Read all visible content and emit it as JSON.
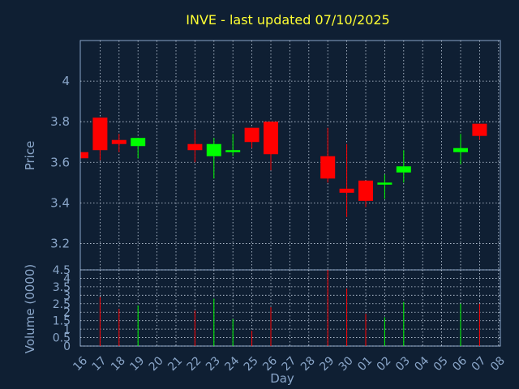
{
  "chart_data": {
    "type": "candlestick",
    "title": "INVE - last updated 07/10/2025",
    "ylabel": "Price",
    "volume_ylabel": "Volume (0000)",
    "xlabel": "Day",
    "ylim": [
      3.07,
      4.2
    ],
    "volume_ylim": [
      0,
      4.5
    ],
    "yticks": [
      "3.2",
      "3.4",
      "3.6",
      "3.8",
      "4"
    ],
    "volume_yticks": [
      "0",
      "0.5",
      "1",
      "1.5",
      "2",
      "2.5",
      "3",
      "3.5",
      "4",
      "4.5"
    ],
    "grid": true,
    "up_color": "#00ff00",
    "down_color": "#ff0000",
    "x_tick_labels": [
      "16",
      "17",
      "18",
      "19",
      "20",
      "21",
      "22",
      "23",
      "24",
      "25",
      "26",
      "27",
      "28",
      "29",
      "30",
      "01",
      "02",
      "03",
      "04",
      "05",
      "06",
      "07",
      "08"
    ],
    "candles": [
      {
        "day": "16",
        "open": 3.65,
        "high": 3.65,
        "low": 3.62,
        "close": 3.62,
        "volume": 0
      },
      {
        "day": "17",
        "open": 3.82,
        "high": 3.82,
        "low": 3.61,
        "close": 3.66,
        "volume": 2.9
      },
      {
        "day": "18",
        "open": 3.71,
        "high": 3.74,
        "low": 3.65,
        "close": 3.69,
        "volume": 2.2
      },
      {
        "day": "19",
        "open": 3.68,
        "high": 3.72,
        "low": 3.62,
        "close": 3.72,
        "volume": 2.4
      },
      {
        "day": "22",
        "open": 3.69,
        "high": 3.76,
        "low": 3.6,
        "close": 3.66,
        "volume": 2.1
      },
      {
        "day": "23",
        "open": 3.63,
        "high": 3.72,
        "low": 3.52,
        "close": 3.69,
        "volume": 2.8
      },
      {
        "day": "24",
        "open": 3.65,
        "high": 3.74,
        "low": 3.63,
        "close": 3.66,
        "volume": 1.6
      },
      {
        "day": "25",
        "open": 3.77,
        "high": 3.77,
        "low": 3.67,
        "close": 3.7,
        "volume": 0.9
      },
      {
        "day": "26",
        "open": 3.8,
        "high": 3.8,
        "low": 3.56,
        "close": 3.64,
        "volume": 2.3
      },
      {
        "day": "29",
        "open": 3.63,
        "high": 3.77,
        "low": 3.5,
        "close": 3.52,
        "volume": 4.5
      },
      {
        "day": "30",
        "open": 3.47,
        "high": 3.69,
        "low": 3.33,
        "close": 3.45,
        "volume": 3.4
      },
      {
        "day": "01",
        "open": 3.51,
        "high": 3.51,
        "low": 3.38,
        "close": 3.41,
        "volume": 1.9
      },
      {
        "day": "02",
        "open": 3.49,
        "high": 3.54,
        "low": 3.42,
        "close": 3.5,
        "volume": 1.7
      },
      {
        "day": "03",
        "open": 3.55,
        "high": 3.66,
        "low": 3.5,
        "close": 3.58,
        "volume": 2.6
      },
      {
        "day": "06",
        "open": 3.65,
        "high": 3.74,
        "low": 3.59,
        "close": 3.67,
        "volume": 2.5
      },
      {
        "day": "07",
        "open": 3.79,
        "high": 3.79,
        "low": 3.71,
        "close": 3.73,
        "volume": 2.5
      }
    ]
  }
}
